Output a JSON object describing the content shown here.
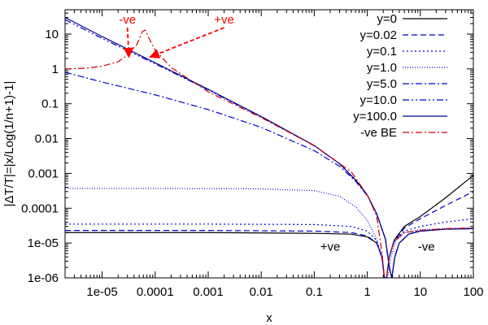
{
  "chart_data": {
    "type": "line",
    "title": "",
    "xlabel": "x",
    "ylabel": "|ΔT/T|=|x/Log(1/n+1)-1|",
    "xscale": "log",
    "yscale": "log",
    "xlim": [
      2e-06,
      100
    ],
    "ylim": [
      1e-06,
      50
    ],
    "grid": false,
    "legend_position": "top-right",
    "x_ticks": [
      {
        "value": 1e-05,
        "label": "1e-05"
      },
      {
        "value": 0.0001,
        "label": "0.0001"
      },
      {
        "value": 0.001,
        "label": "0.001"
      },
      {
        "value": 0.01,
        "label": "0.01"
      },
      {
        "value": 0.1,
        "label": "0.1"
      },
      {
        "value": 1,
        "label": "1"
      },
      {
        "value": 10,
        "label": "10"
      },
      {
        "value": 100,
        "label": "100"
      }
    ],
    "y_ticks": [
      {
        "value": 1e-06,
        "label": "1e-06"
      },
      {
        "value": 1e-05,
        "label": "1e-05"
      },
      {
        "value": 0.0001,
        "label": "0.0001"
      },
      {
        "value": 0.001,
        "label": "0.001"
      },
      {
        "value": 0.01,
        "label": "0.01"
      },
      {
        "value": 0.1,
        "label": "0.1"
      },
      {
        "value": 1,
        "label": "1"
      },
      {
        "value": 10,
        "label": "10"
      }
    ],
    "annotations": [
      {
        "text": "-ve",
        "x": 3e-05,
        "y": 20,
        "color": "#ff0000",
        "arrow_to": {
          "x": 3.2e-05,
          "y": 2.2
        }
      },
      {
        "text": "+ve",
        "x": 0.002,
        "y": 20,
        "color": "#ff0000",
        "arrow_to": {
          "x": 8e-05,
          "y": 2.2
        }
      },
      {
        "text": "+ve",
        "x": 0.2,
        "y": 6e-06,
        "color": "#000000"
      },
      {
        "text": "-ve",
        "x": 13,
        "y": 6e-06,
        "color": "#000000"
      }
    ],
    "series": [
      {
        "name": "y=0",
        "color": "#000000",
        "dash": "",
        "x": [
          2e-06,
          0.001,
          0.1,
          0.5,
          1,
          1.5,
          1.9,
          2.1,
          2.3,
          2.6,
          3.2,
          5,
          10,
          30,
          100
        ],
        "y": [
          2e-05,
          2e-05,
          1.9e-05,
          1.8e-05,
          1.5e-05,
          1e-05,
          4e-06,
          1e-06,
          1e-06,
          4e-06,
          1.2e-05,
          3e-05,
          5.77e-05,
          0.0002,
          0.00088
        ]
      },
      {
        "name": "y=0.02",
        "color": "#0000cc",
        "dash": "7,4",
        "x": [
          2e-06,
          0.001,
          0.1,
          0.5,
          1,
          1.5,
          1.9,
          2.1,
          2.3,
          2.6,
          3.2,
          5,
          10,
          30,
          100
        ],
        "y": [
          2.3e-05,
          2.3e-05,
          2.2e-05,
          2e-05,
          1.6e-05,
          1e-05,
          4e-06,
          1e-06,
          1e-06,
          4e-06,
          1.1e-05,
          2.7e-05,
          5e-05,
          0.00012,
          0.0003
        ]
      },
      {
        "name": "y=0.1",
        "color": "#0000cc",
        "dash": "2,3",
        "x": [
          2e-06,
          0.001,
          0.1,
          0.5,
          1,
          1.5,
          1.9,
          2.1,
          2.3,
          2.6,
          3.2,
          5,
          10,
          30,
          100
        ],
        "y": [
          3.5e-05,
          3.5e-05,
          3.4e-05,
          3e-05,
          2.2e-05,
          1.2e-05,
          4e-06,
          1e-06,
          1e-06,
          4e-06,
          1.1e-05,
          2.2e-05,
          3e-05,
          4e-05,
          5e-05
        ]
      },
      {
        "name": "y=1.0",
        "color": "#0000cc",
        "dash": "1,2",
        "x": [
          2e-06,
          0.0001,
          0.01,
          0.1,
          0.3,
          0.6,
          1,
          1.5,
          1.9,
          2.1,
          2.4,
          2.8,
          3.5,
          5,
          10,
          30,
          100
        ],
        "y": [
          0.00037,
          0.00037,
          0.00036,
          0.00032,
          0.00022,
          0.00011,
          4.5e-05,
          1.3e-05,
          3e-06,
          1e-06,
          1e-06,
          4e-06,
          1.2e-05,
          2e-05,
          2.4e-05,
          2.6e-05,
          2.7e-05
        ]
      },
      {
        "name": "y=5.0",
        "color": "#0000cc",
        "dash": "8,3,2,3",
        "x": [
          2e-06,
          1e-05,
          0.0001,
          0.001,
          0.01,
          0.1,
          0.3,
          0.6,
          1,
          1.5,
          2.2,
          2.6,
          2.9,
          3.3,
          4,
          6,
          10,
          30,
          100
        ],
        "y": [
          0.8,
          0.42,
          0.18,
          0.068,
          0.021,
          0.0045,
          0.0016,
          0.0006,
          0.00023,
          7e-05,
          1.3e-05,
          2e-06,
          1e-06,
          4e-06,
          1e-05,
          1.8e-05,
          2.2e-05,
          2.5e-05,
          2.6e-05
        ]
      },
      {
        "name": "y=10.0",
        "color": "#0000cc",
        "dash": "8,3,2,3,2,3",
        "x": [
          2e-06,
          1e-05,
          0.0001,
          0.001,
          0.01,
          0.1,
          0.3,
          0.6,
          1,
          1.5,
          2.2,
          2.6,
          2.9,
          3.3,
          4,
          6,
          10,
          30,
          100
        ],
        "y": [
          26,
          7.5,
          1.4,
          0.25,
          0.042,
          0.0062,
          0.0019,
          0.00065,
          0.00024,
          7e-05,
          1.3e-05,
          2e-06,
          1e-06,
          4e-06,
          1e-05,
          1.8e-05,
          2.2e-05,
          2.5e-05,
          2.6e-05
        ]
      },
      {
        "name": "y=100.0",
        "color": "#00008b",
        "dash": "",
        "x": [
          2e-06,
          1e-05,
          0.0001,
          0.001,
          0.01,
          0.1,
          0.3,
          0.6,
          1,
          1.5,
          2.2,
          2.6,
          2.9,
          3.3,
          4,
          6,
          10,
          30,
          100
        ],
        "y": [
          30,
          8.5,
          1.5,
          0.26,
          0.043,
          0.0063,
          0.0019,
          0.00065,
          0.00024,
          7e-05,
          1.3e-05,
          2e-06,
          1e-06,
          4e-06,
          1e-05,
          1.8e-05,
          2.2e-05,
          2.5e-05,
          2.6e-05
        ]
      },
      {
        "name": "-ve BE",
        "color": "#cc0000",
        "dash": "8,3,2,3",
        "x": [
          2e-06,
          5e-06,
          1e-05,
          2e-05,
          3e-05,
          4.5e-05,
          5.8e-05,
          6.5e-05,
          7.5e-05,
          0.0001,
          0.0002,
          0.001,
          0.01,
          0.1,
          0.5,
          1,
          1.5,
          1.9,
          2.1,
          2.3,
          2.6,
          3.2,
          5,
          10,
          30,
          100
        ],
        "y": [
          1.0,
          1.05,
          1.2,
          1.6,
          2.5,
          5,
          12,
          13,
          8,
          3.5,
          1.1,
          0.22,
          0.04,
          0.0063,
          0.0011,
          0.00024,
          6e-05,
          5e-06,
          1e-06,
          1e-06,
          4e-06,
          1.1e-05,
          2e-05,
          2.3e-05,
          2.6e-05,
          2.7e-05
        ]
      }
    ]
  }
}
